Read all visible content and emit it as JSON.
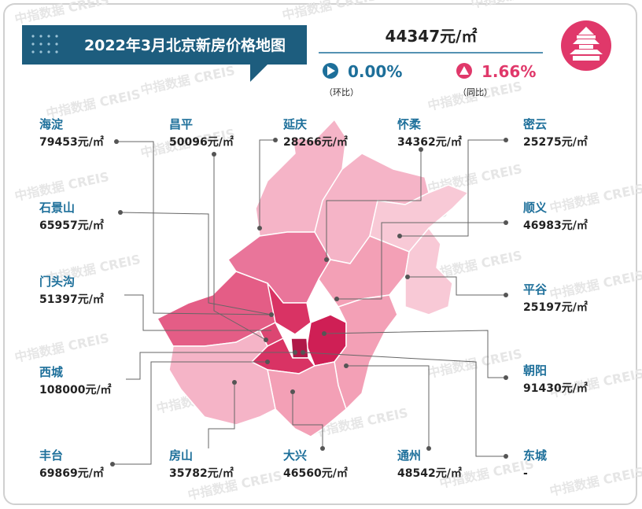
{
  "header": {
    "title": "2022年3月北京新房价格地图",
    "average_price": "44347元/㎡"
  },
  "changes": {
    "mom_value": "0.00%",
    "mom_label": "（环比）",
    "yoy_value": "1.66%",
    "yoy_label": "（同比）"
  },
  "watermark": "中指数据 CREIS",
  "districts": [
    {
      "name": "海淀",
      "price": "79453元/㎡"
    },
    {
      "name": "昌平",
      "price": "50096元/㎡"
    },
    {
      "name": "延庆",
      "price": "28266元/㎡"
    },
    {
      "name": "怀柔",
      "price": "34362元/㎡"
    },
    {
      "name": "密云",
      "price": "25275元/㎡"
    },
    {
      "name": "石景山",
      "price": "65957元/㎡"
    },
    {
      "name": "顺义",
      "price": "46983元/㎡"
    },
    {
      "name": "门头沟",
      "price": "51397元/㎡"
    },
    {
      "name": "平谷",
      "price": "25197元/㎡"
    },
    {
      "name": "西城",
      "price": "108000元/㎡"
    },
    {
      "name": "朝阳",
      "price": "91430元/㎡"
    },
    {
      "name": "丰台",
      "price": "69869元/㎡"
    },
    {
      "name": "房山",
      "price": "35782元/㎡"
    },
    {
      "name": "大兴",
      "price": "46560元/㎡"
    },
    {
      "name": "通州",
      "price": "48542元/㎡"
    },
    {
      "name": "东城",
      "price": "-"
    }
  ]
}
